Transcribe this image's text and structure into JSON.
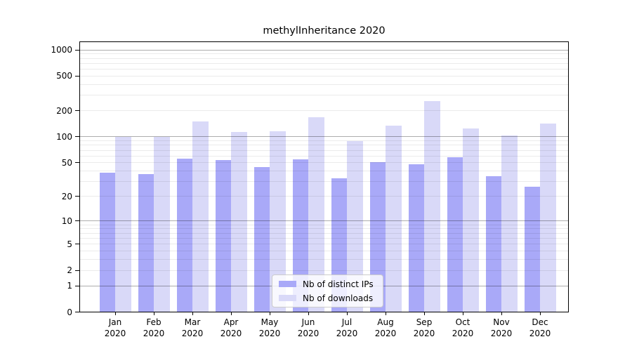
{
  "chart_data": {
    "type": "bar",
    "title": "methylInheritance 2020",
    "categories": [
      {
        "month": "Jan",
        "year": "2020"
      },
      {
        "month": "Feb",
        "year": "2020"
      },
      {
        "month": "Mar",
        "year": "2020"
      },
      {
        "month": "Apr",
        "year": "2020"
      },
      {
        "month": "May",
        "year": "2020"
      },
      {
        "month": "Jun",
        "year": "2020"
      },
      {
        "month": "Jul",
        "year": "2020"
      },
      {
        "month": "Aug",
        "year": "2020"
      },
      {
        "month": "Sep",
        "year": "2020"
      },
      {
        "month": "Oct",
        "year": "2020"
      },
      {
        "month": "Nov",
        "year": "2020"
      },
      {
        "month": "Dec",
        "year": "2020"
      }
    ],
    "series": [
      {
        "name": "Nb of distinct IPs",
        "color": "#a9a9f8",
        "values": [
          38,
          37,
          56,
          54,
          45,
          55,
          33,
          51,
          48,
          58,
          35,
          26
        ]
      },
      {
        "name": "Nb of downloads",
        "color": "#d9d9f8",
        "values": [
          100,
          100,
          151,
          114,
          116,
          169,
          90,
          134,
          258,
          126,
          104,
          143
        ]
      }
    ],
    "yaxis": {
      "scale": "log10(value+1)",
      "range": [
        0,
        1000
      ],
      "ticks": [
        0,
        1,
        2,
        5,
        10,
        20,
        50,
        100,
        200,
        500,
        1000
      ],
      "major_gridlines": [
        1,
        10,
        100,
        1000
      ],
      "minor_gridline_steps": [
        2,
        3,
        4,
        5,
        6,
        7,
        8,
        9
      ]
    },
    "grid": true,
    "legend_position": "bottom-center-inside"
  }
}
